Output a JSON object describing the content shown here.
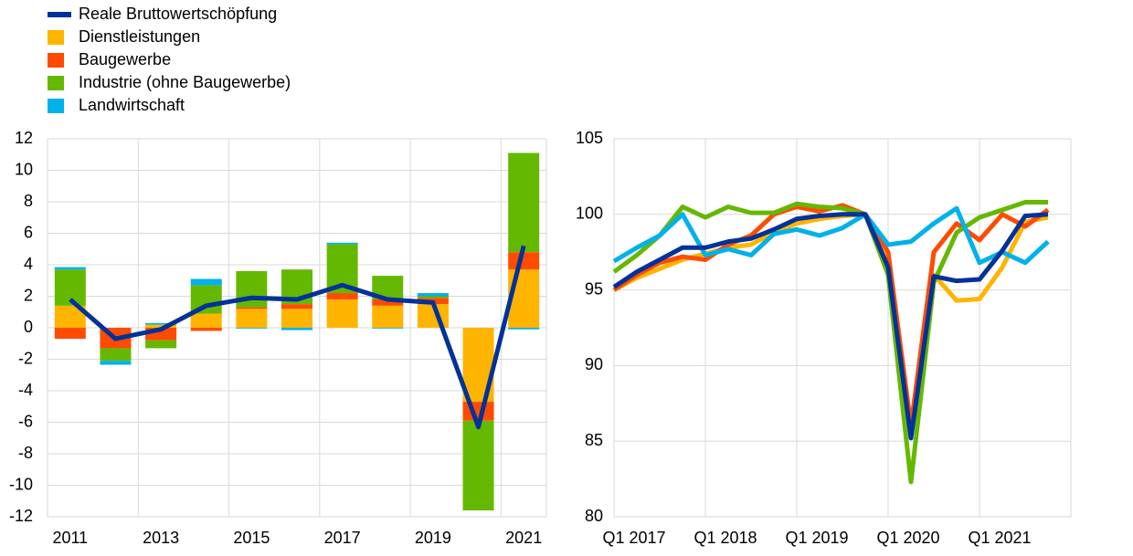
{
  "chart_data": [
    {
      "type": "bar",
      "stacked": true,
      "grid": true,
      "categories": [
        "2011",
        null,
        "2013",
        null,
        "2015",
        null,
        "2017",
        null,
        "2019",
        null,
        "2021"
      ],
      "ylim": [
        -12,
        12
      ],
      "yticks": [
        -12,
        -10,
        -8,
        -6,
        -4,
        -2,
        0,
        2,
        4,
        6,
        8,
        10,
        12
      ],
      "series": [
        {
          "name": "Reale Bruttowertschöpfung",
          "type": "line",
          "color": "#003299",
          "values": [
            1.8,
            -0.7,
            -0.1,
            1.4,
            1.9,
            1.8,
            2.7,
            1.8,
            1.6,
            -6.3,
            5.2
          ]
        },
        {
          "name": "Dienstleistungen",
          "type": "bar",
          "color": "#ffb400",
          "values": [
            1.4,
            0,
            0.2,
            0.9,
            1.2,
            1.2,
            1.8,
            1.4,
            1.5,
            -4.7,
            3.7
          ]
        },
        {
          "name": "Baugewerbe",
          "type": "bar",
          "color": "#ff4b00",
          "values": [
            -0.7,
            -1.3,
            -0.8,
            -0.2,
            0.1,
            0.3,
            0.4,
            0.4,
            0.4,
            -1.2,
            1.1
          ]
        },
        {
          "name": "Industrie (ohne Baugewerbe)",
          "type": "bar",
          "color": "#65b800",
          "values": [
            2.3,
            -0.8,
            -0.5,
            1.8,
            2.3,
            2.2,
            3.1,
            1.5,
            0.1,
            -5.7,
            6.3
          ]
        },
        {
          "name": "Landwirtschaft",
          "type": "bar",
          "color": "#00b1ea",
          "values": [
            0.15,
            -0.25,
            0.1,
            0.4,
            -0.05,
            -0.15,
            0.1,
            -0.05,
            0.2,
            0,
            -0.1
          ]
        }
      ]
    },
    {
      "type": "line",
      "grid": true,
      "categories": [
        "Q1 2017",
        null,
        null,
        null,
        "Q1 2018",
        null,
        null,
        null,
        "Q1 2019",
        null,
        null,
        null,
        "Q1 2020",
        null,
        null,
        null,
        "Q1 2021",
        null,
        null,
        null
      ],
      "ylim": [
        80,
        105
      ],
      "yticks": [
        80,
        85,
        90,
        95,
        100,
        105
      ],
      "series": [
        {
          "color": "#ffb400",
          "values": [
            95.0,
            95.8,
            96.4,
            97.0,
            97.4,
            97.8,
            98.0,
            98.8,
            99.4,
            99.7,
            99.9,
            100.0,
            96.8,
            85.5,
            96.0,
            94.3,
            94.4,
            96.5,
            99.5,
            99.8
          ]
        },
        {
          "color": "#ff4b00",
          "values": [
            95.0,
            96.0,
            96.8,
            97.2,
            97.0,
            98.0,
            98.6,
            100.0,
            100.5,
            100.2,
            100.6,
            100.0,
            97.5,
            86.0,
            97.5,
            99.4,
            98.3,
            100.0,
            99.2,
            100.3
          ]
        },
        {
          "color": "#65b800",
          "values": [
            96.2,
            97.3,
            98.6,
            100.5,
            99.8,
            100.5,
            100.1,
            100.1,
            100.7,
            100.5,
            100.4,
            100.0,
            96.0,
            82.3,
            95.5,
            98.8,
            99.8,
            100.3,
            100.8,
            100.8
          ]
        },
        {
          "color": "#00b1ea",
          "values": [
            96.9,
            97.8,
            98.6,
            100.0,
            97.3,
            97.7,
            97.3,
            98.7,
            99.0,
            98.6,
            99.1,
            100.0,
            98.0,
            98.2,
            99.4,
            100.4,
            96.8,
            97.5,
            96.8,
            98.2
          ]
        },
        {
          "color": "#003299",
          "values": [
            95.2,
            96.2,
            97.0,
            97.8,
            97.8,
            98.2,
            98.4,
            99.0,
            99.7,
            99.9,
            100.0,
            100.0,
            96.5,
            85.2,
            95.9,
            95.6,
            95.7,
            97.6,
            99.9,
            100.0
          ]
        }
      ]
    }
  ]
}
